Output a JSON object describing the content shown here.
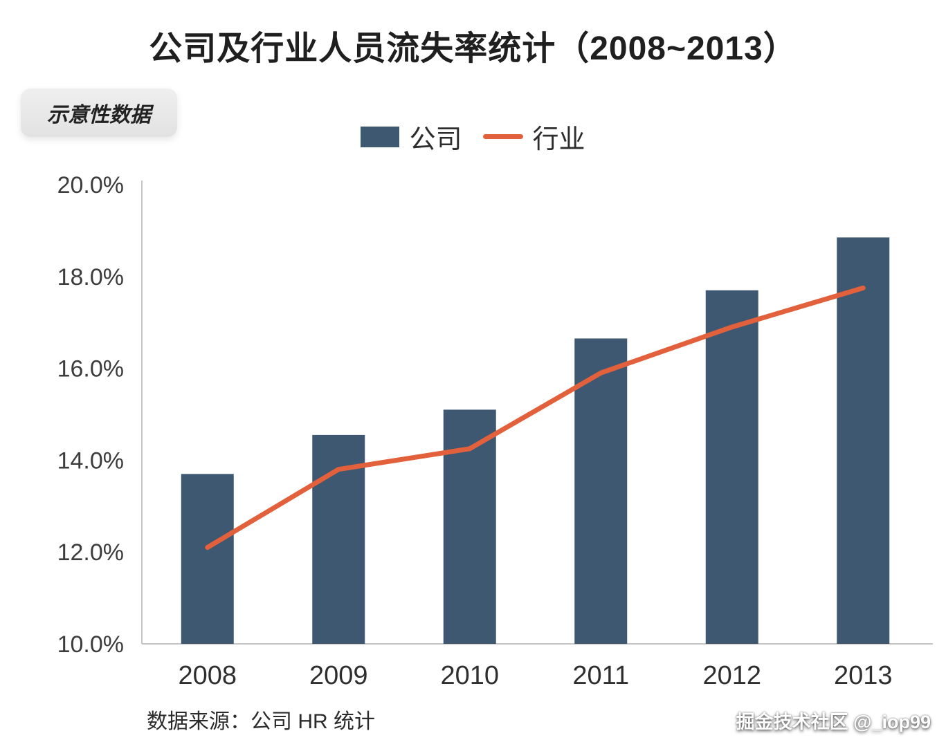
{
  "page": {
    "title": "公司及行业人员流失率统计（2008~2013）",
    "badge": "示意性数据",
    "source": "数据来源：公司 HR 统计",
    "watermark": "掘金技术社区 @_iop99"
  },
  "legend": {
    "company_label": "公司",
    "industry_label": "行业"
  },
  "chart_data": {
    "type": "bar",
    "subtype": "bar-with-line-overlay",
    "title": "公司及行业人员流失率统计（2008~2013）",
    "categories": [
      "2008",
      "2009",
      "2010",
      "2011",
      "2012",
      "2013"
    ],
    "series": [
      {
        "name": "公司",
        "type": "bar",
        "color": "#3e5872",
        "values": [
          13.7,
          14.55,
          15.1,
          16.65,
          17.7,
          18.85
        ]
      },
      {
        "name": "行业",
        "type": "line",
        "color": "#e2613c",
        "values": [
          12.1,
          13.8,
          14.25,
          15.9,
          16.9,
          17.75
        ]
      }
    ],
    "xlabel": "",
    "ylabel": "",
    "ylim": [
      10,
      20
    ],
    "y_ticks": [
      10,
      12,
      14,
      16,
      18,
      20
    ],
    "y_tick_format": "percent_1dp",
    "grid": false,
    "legend_position": "top-center"
  }
}
